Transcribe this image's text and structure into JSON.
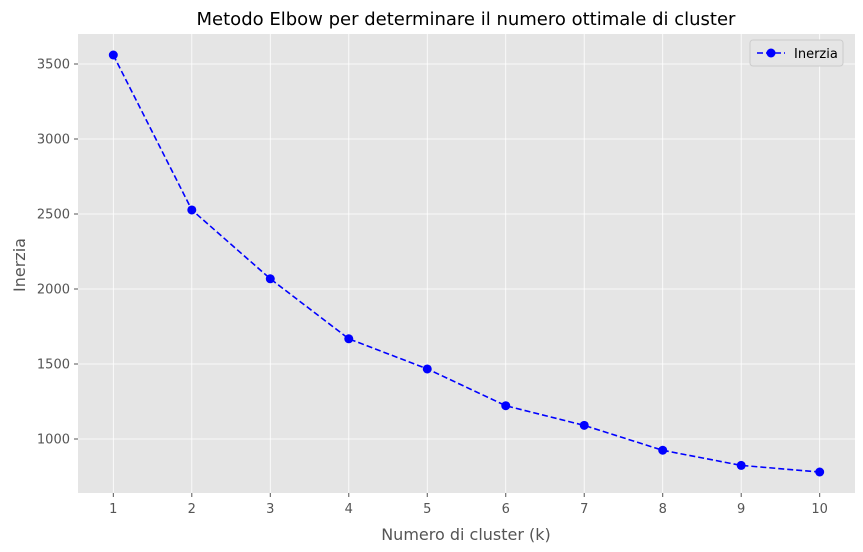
{
  "chart_data": {
    "type": "line",
    "title": "Metodo Elbow per determinare il numero ottimale di cluster",
    "xlabel": "Numero di cluster (k)",
    "ylabel": "Inerzia",
    "x": [
      1,
      2,
      3,
      4,
      5,
      6,
      7,
      8,
      9,
      10
    ],
    "xticks": [
      "1",
      "2",
      "3",
      "4",
      "5",
      "6",
      "7",
      "8",
      "9",
      "10"
    ],
    "yticks": [
      1000,
      1500,
      2000,
      2500,
      3000,
      3500
    ],
    "ytick_labels": [
      "1000",
      "1500",
      "2000",
      "2500",
      "3000",
      "3500"
    ],
    "xlim": [
      0.55,
      10.45
    ],
    "ylim": [
      640,
      3700
    ],
    "grid": true,
    "legend_position": "top-right",
    "series": [
      {
        "name": "Inerzia",
        "color": "#0000ff",
        "line_style": "dashed",
        "marker": "circle",
        "values": [
          3560,
          2527,
          2068,
          1668,
          1467,
          1222,
          1091,
          925,
          824,
          780
        ]
      }
    ]
  },
  "style": {
    "plot_background": "#e5e5e5",
    "grid_color": "#ffffff"
  }
}
